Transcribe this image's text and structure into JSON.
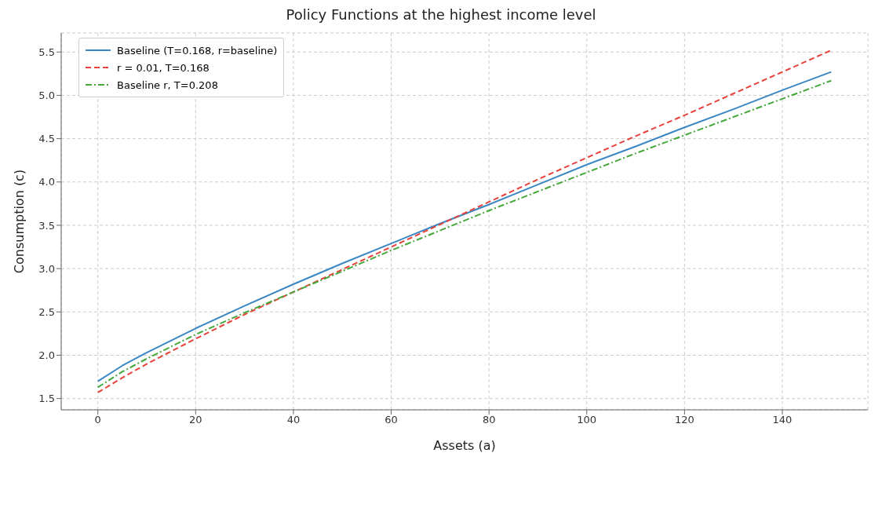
{
  "chart_data": {
    "type": "line",
    "title": "Policy Functions at the highest income level",
    "xlabel": "Assets (a)",
    "ylabel": "Consumption (c)",
    "xlim": [
      -7.5,
      157.5
    ],
    "xticks": [
      0,
      20,
      40,
      60,
      80,
      100,
      120,
      140
    ],
    "ylim": [
      1.37,
      5.72
    ],
    "yticks": [
      1.5,
      {
        "value": 2,
        "label": "2.0"
      },
      2.5,
      {
        "value": 3,
        "label": "3.0"
      },
      3.5,
      {
        "value": 4,
        "label": "4.0"
      },
      4.5,
      {
        "value": 5,
        "label": "5.0"
      },
      5.5
    ],
    "grid": true,
    "legend": "top left",
    "series": [
      {
        "name": "Baseline (T=0.168, r=baseline)",
        "color": "#3a87c4",
        "line_style": "solid",
        "x": [
          0,
          5,
          10,
          20,
          30,
          40,
          50,
          60,
          70,
          80,
          90,
          100,
          110,
          120,
          130,
          140,
          150
        ],
        "values": [
          1.7,
          1.88,
          2.03,
          2.31,
          2.57,
          2.82,
          3.06,
          3.29,
          3.52,
          3.74,
          3.97,
          4.2,
          4.41,
          4.63,
          4.84,
          5.06,
          5.27
        ]
      },
      {
        "name": "r = 0.01, T=0.168",
        "color": "#e8413c",
        "line_style": "dashed",
        "x": [
          0,
          5,
          10,
          20,
          30,
          40,
          50,
          60,
          70,
          80,
          90,
          100,
          110,
          120,
          130,
          140,
          150
        ],
        "values": [
          1.57,
          1.74,
          1.9,
          2.19,
          2.47,
          2.73,
          2.99,
          3.25,
          3.51,
          3.77,
          4.03,
          4.28,
          4.53,
          4.77,
          5.02,
          5.27,
          5.52
        ]
      },
      {
        "name": "Baseline r, T=0.208",
        "color": "#44a83a",
        "line_style": "dashdot",
        "x": [
          0,
          5,
          10,
          20,
          30,
          40,
          50,
          60,
          70,
          80,
          90,
          100,
          110,
          120,
          130,
          140,
          150
        ],
        "values": [
          1.63,
          1.81,
          1.96,
          2.24,
          2.49,
          2.73,
          2.97,
          3.21,
          3.44,
          3.67,
          3.89,
          4.11,
          4.33,
          4.54,
          4.75,
          4.96,
          5.17
        ]
      }
    ]
  }
}
